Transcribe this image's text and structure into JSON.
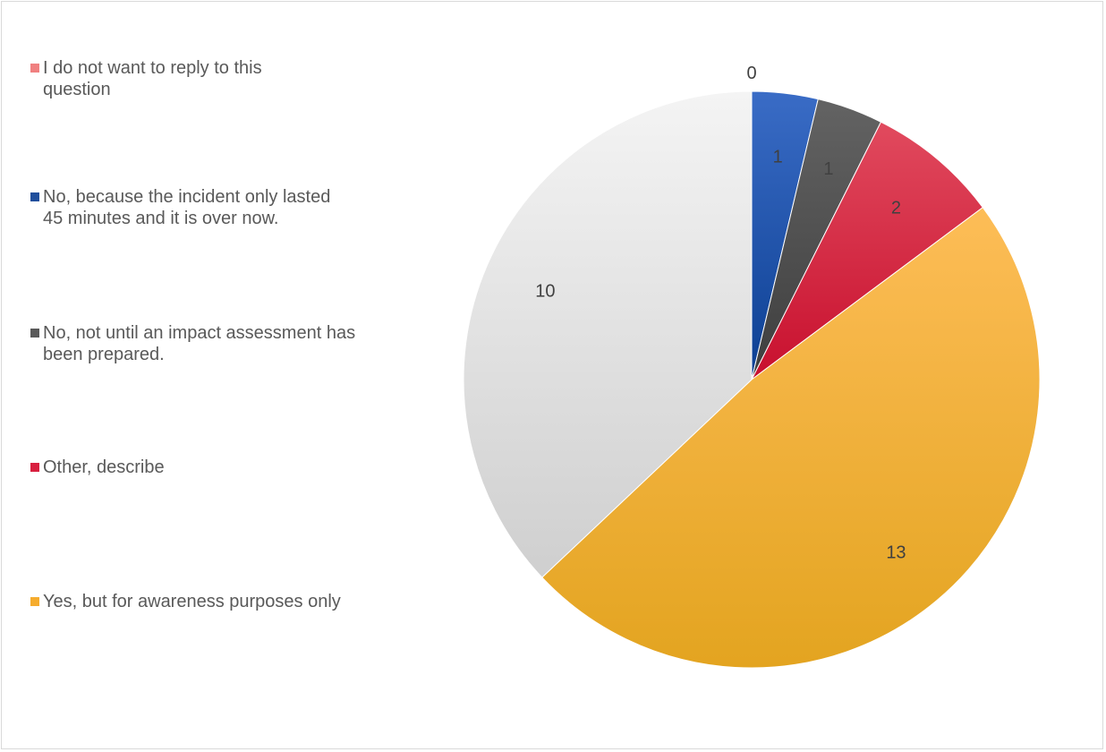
{
  "chart_data": {
    "type": "pie",
    "title": "",
    "categories": [
      "I do not want to reply to this question",
      "No, because the incident only lasted 45 minutes and it is over now.",
      "No, not until an impact assessment has been prepared.",
      "Other, describe",
      "Yes, but for awareness purposes only",
      ""
    ],
    "values": [
      0,
      1,
      1,
      2,
      13,
      10
    ],
    "data_labels": [
      "0",
      "1",
      "1",
      "2",
      "13",
      "10"
    ],
    "colors": [
      "#f08080",
      "#1f4e9c",
      "#595959",
      "#d81f3f",
      "#f5ac2e",
      "#e4e4e4"
    ],
    "legend": {
      "placement": "left",
      "entries": [
        {
          "label": "I do not want to reply to this question",
          "color": "#f08080"
        },
        {
          "label": "No, because the incident only lasted 45 minutes and it is over now.",
          "color": "#1f4e9c"
        },
        {
          "label": "No, not until an impact assessment has been prepared.",
          "color": "#595959"
        },
        {
          "label": "Other, describe",
          "color": "#d81f3f"
        },
        {
          "label": "Yes, but for awareness purposes only",
          "color": "#f5ac2e"
        }
      ]
    }
  }
}
